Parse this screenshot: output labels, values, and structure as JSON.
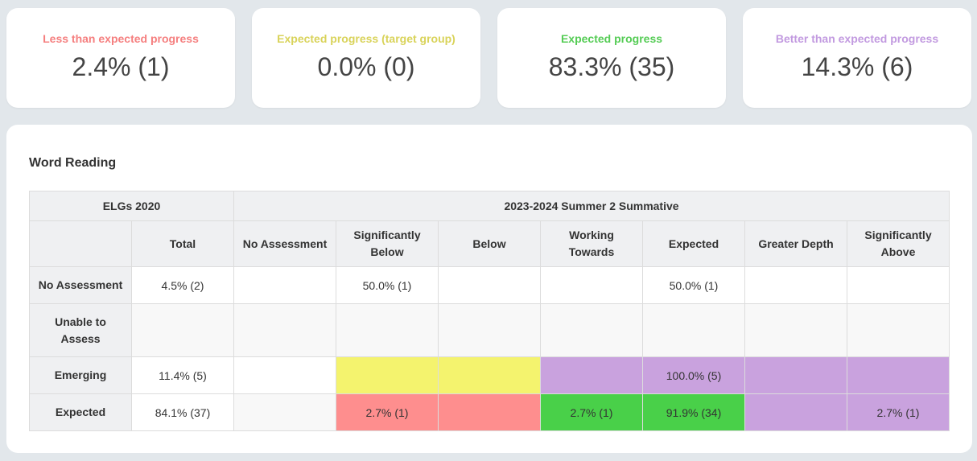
{
  "cards": [
    {
      "label": "Less than expected progress",
      "value": "2.4% (1)",
      "color": "#f57f7f"
    },
    {
      "label": "Expected progress (target group)",
      "value": "0.0% (0)",
      "color": "#d9d35a"
    },
    {
      "label": "Expected progress",
      "value": "83.3% (35)",
      "color": "#55cc55"
    },
    {
      "label": "Better than expected progress",
      "value": "14.3% (6)",
      "color": "#c29ae0"
    }
  ],
  "section": {
    "title": "Word Reading"
  },
  "table": {
    "group_left": "ELGs 2020",
    "group_right": "2023-2024 Summer 2 Summative",
    "columns": [
      "",
      "Total",
      "No Assessment",
      "Significantly Below",
      "Below",
      "Working Towards",
      "Expected",
      "Greater Depth",
      "Significantly Above"
    ],
    "rows": [
      {
        "label": "No Assessment",
        "cells": [
          "4.5% (2)",
          "",
          "50.0% (1)",
          "",
          "",
          "50.0% (1)",
          "",
          ""
        ]
      },
      {
        "label": "Unable to Assess",
        "cells": [
          "",
          "",
          "",
          "",
          "",
          "",
          "",
          ""
        ]
      },
      {
        "label": "Emerging",
        "cells": [
          "11.4% (5)",
          "",
          "",
          "",
          "",
          "100.0% (5)",
          "",
          ""
        ]
      },
      {
        "label": "Expected",
        "cells": [
          "84.1% (37)",
          "",
          "2.7% (1)",
          "",
          "2.7% (1)",
          "91.9% (34)",
          "",
          "2.7% (1)"
        ]
      }
    ]
  },
  "colors": {
    "yellow": "#f4f36e",
    "red": "#fe8e8e",
    "green": "#49d049",
    "purple": "#c9a2de",
    "header_bg": "#eff0f2",
    "page_bg": "#e2e7eb"
  }
}
